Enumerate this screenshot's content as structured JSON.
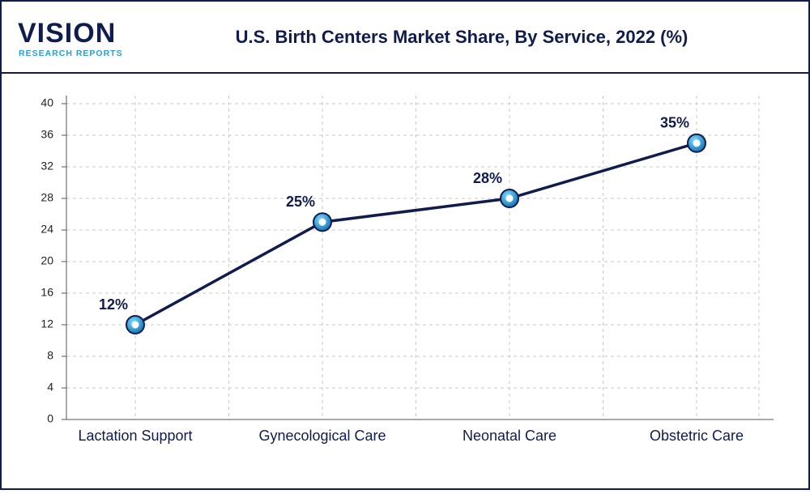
{
  "logo_text": "VISION",
  "logo_tagline": "RESEARCH REPORTS",
  "chart_data": {
    "type": "line",
    "title": "U.S. Birth Centers Market Share, By Service, 2022 (%)",
    "categories": [
      "Lactation Support",
      "Gynecological Care",
      "Neonatal Care",
      "Obstetric Care"
    ],
    "values": [
      12,
      25,
      28,
      35
    ],
    "value_labels": [
      "12%",
      "25%",
      "28%",
      "35%"
    ],
    "color": "#101c4e",
    "marker_color": "#1ea3dc",
    "ylim": [
      0,
      40
    ],
    "yticks": [
      0,
      4,
      8,
      12,
      16,
      20,
      24,
      28,
      32,
      36,
      40
    ],
    "grid": true
  }
}
